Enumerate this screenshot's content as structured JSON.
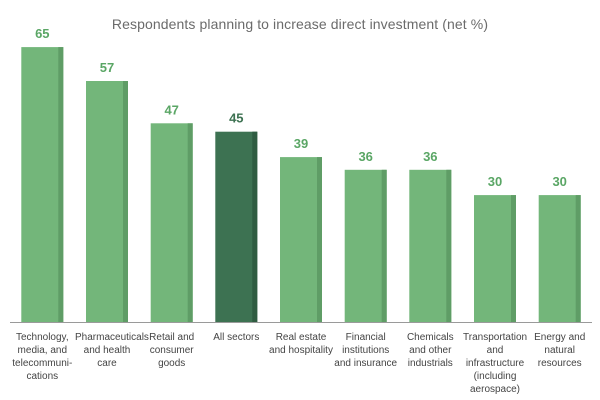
{
  "chart_data": {
    "type": "bar",
    "title": "Respondents planning to increase direct investment (net %)",
    "xlabel": "",
    "ylabel": "",
    "ylim": [
      0,
      70
    ],
    "grid": false,
    "categories": [
      "Technology, media, and telecommuni-cations",
      "Pharmaceuticals and health care",
      "Retail and consumer goods",
      "All sectors",
      "Real estate and hospitality",
      "Financial institutions and insurance",
      "Chemicals and other industrials",
      "Transportation and infrastructure (including aerospace)",
      "Energy and natural resources"
    ],
    "values": [
      65,
      57,
      47,
      45,
      39,
      36,
      36,
      30,
      30
    ],
    "highlight_category": "All sectors"
  },
  "colors": {
    "bar": "#73b67a",
    "bar_shade": "#5f9d66",
    "highlight": "#3d7252",
    "highlight_shade": "#2f5c41",
    "label": "#5aa665",
    "highlight_label": "#3d7252",
    "axis": "#9a9a9a"
  }
}
